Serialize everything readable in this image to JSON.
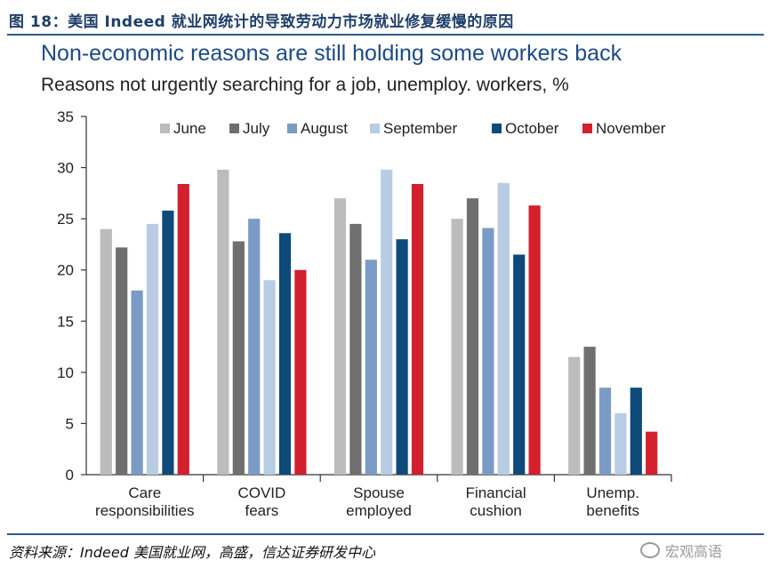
{
  "figure_title": "图 18：美国 Indeed 就业网统计的导致劳动力市场就业修复缓慢的原因",
  "source_note": "资料来源：Indeed 美国就业网，高盛，信达证券研发中心",
  "watermark": "宏观高语",
  "colors": {
    "June": "#bcbcbc",
    "July": "#6f6f6f",
    "August": "#7b9bc7",
    "September": "#b8cce4",
    "October": "#0e4a7a",
    "November": "#d3202e",
    "axis": "#333333",
    "header_rule": "#2e5a88"
  },
  "chart_data": {
    "type": "bar",
    "title": "Non-economic reasons are still holding some workers back",
    "subtitle": "Reasons not urgently searching for a job, unemploy. workers, %",
    "categories": [
      [
        "Care",
        "responsibilities"
      ],
      [
        "COVID",
        "fears"
      ],
      [
        "Spouse",
        "employed"
      ],
      [
        "Financial",
        "cushion"
      ],
      [
        "Unemp.",
        "benefits"
      ]
    ],
    "series": [
      {
        "name": "June",
        "values": [
          24.0,
          29.8,
          27.0,
          25.0,
          11.5
        ]
      },
      {
        "name": "July",
        "values": [
          22.2,
          22.8,
          24.5,
          27.0,
          12.5
        ]
      },
      {
        "name": "August",
        "values": [
          18.0,
          25.0,
          21.0,
          24.1,
          8.5
        ]
      },
      {
        "name": "September",
        "values": [
          24.5,
          19.0,
          29.8,
          28.5,
          6.0
        ]
      },
      {
        "name": "October",
        "values": [
          25.8,
          23.6,
          23.0,
          21.5,
          8.5
        ]
      },
      {
        "name": "November",
        "values": [
          28.4,
          20.0,
          28.4,
          26.3,
          4.2
        ]
      }
    ],
    "ylim": [
      0,
      35
    ],
    "yticks": [
      "0",
      "5",
      "10",
      "15",
      "20",
      "25",
      "30",
      "35"
    ],
    "legend_position": "top",
    "grid": false
  }
}
